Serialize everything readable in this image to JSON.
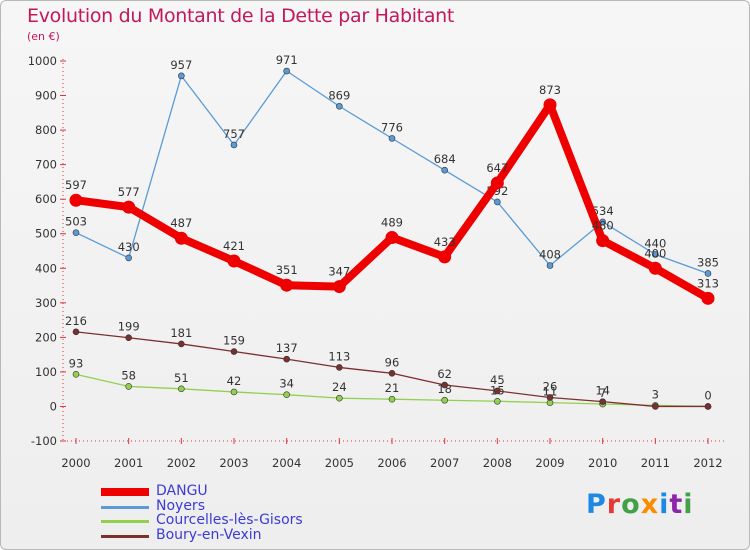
{
  "header": {
    "title": "Evolution du Montant de la Dette par Habitant",
    "unit": "(en €)"
  },
  "logo": {
    "text": "Proxiti",
    "colors": [
      "#1e88e5",
      "#e53935",
      "#43a047",
      "#fb8c00",
      "#1e88e5",
      "#8e24aa",
      "#43a047"
    ]
  },
  "chart_data": {
    "type": "line",
    "title": "Evolution du Montant de la Dette par Habitant",
    "subtitle": "(en €)",
    "xlabel": "",
    "ylabel": "",
    "x": [
      2000,
      2001,
      2002,
      2003,
      2004,
      2005,
      2006,
      2007,
      2008,
      2009,
      2010,
      2011,
      2012
    ],
    "ylim": [
      -100,
      1000
    ],
    "yticks": [
      -100,
      0,
      100,
      200,
      300,
      400,
      500,
      600,
      700,
      800,
      900,
      1000
    ],
    "grid": false,
    "legend_position": "bottom-left",
    "series": [
      {
        "name": "Noyers",
        "color": "#5b9bd5",
        "values": [
          503,
          430,
          957,
          757,
          971,
          869,
          776,
          684,
          592,
          408,
          534,
          440,
          385
        ],
        "labels": [
          "503",
          "430",
          "957",
          "757",
          "971",
          "869",
          "776",
          "684",
          "592",
          "408",
          "534",
          "440",
          "385"
        ]
      },
      {
        "name": "Courcelles-lès-Gisors",
        "color": "#92d050",
        "values": [
          93,
          58,
          51,
          42,
          34,
          24,
          21,
          18,
          15,
          11,
          7,
          3,
          0
        ],
        "labels": [
          "93",
          "58",
          "51",
          "42",
          "34",
          "24",
          "21",
          "18",
          "15",
          "11",
          "7",
          "3",
          "0"
        ]
      },
      {
        "name": "Boury-en-Vexin",
        "color": "#7b3030",
        "values": [
          216,
          199,
          181,
          159,
          137,
          113,
          96,
          62,
          45,
          26,
          14,
          0,
          0
        ],
        "labels": [
          "216",
          "199",
          "181",
          "159",
          "137",
          "113",
          "96",
          "62",
          "45",
          "26",
          "14",
          "",
          ""
        ]
      },
      {
        "name": "DANGU",
        "color": "#ee0000",
        "values": [
          597,
          577,
          487,
          421,
          351,
          347,
          489,
          433,
          647,
          873,
          480,
          400,
          313
        ],
        "labels": [
          "597",
          "577",
          "487",
          "421",
          "351",
          "347",
          "489",
          "433",
          "647",
          "873",
          "480",
          "400",
          "313"
        ]
      }
    ]
  },
  "legend": {
    "items": [
      {
        "name": "DANGU",
        "color": "#ee0000"
      },
      {
        "name": "Noyers",
        "color": "#5b9bd5"
      },
      {
        "name": "Courcelles-lès-Gisors",
        "color": "#92d050"
      },
      {
        "name": "Boury-en-Vexin",
        "color": "#7b3030"
      }
    ]
  }
}
